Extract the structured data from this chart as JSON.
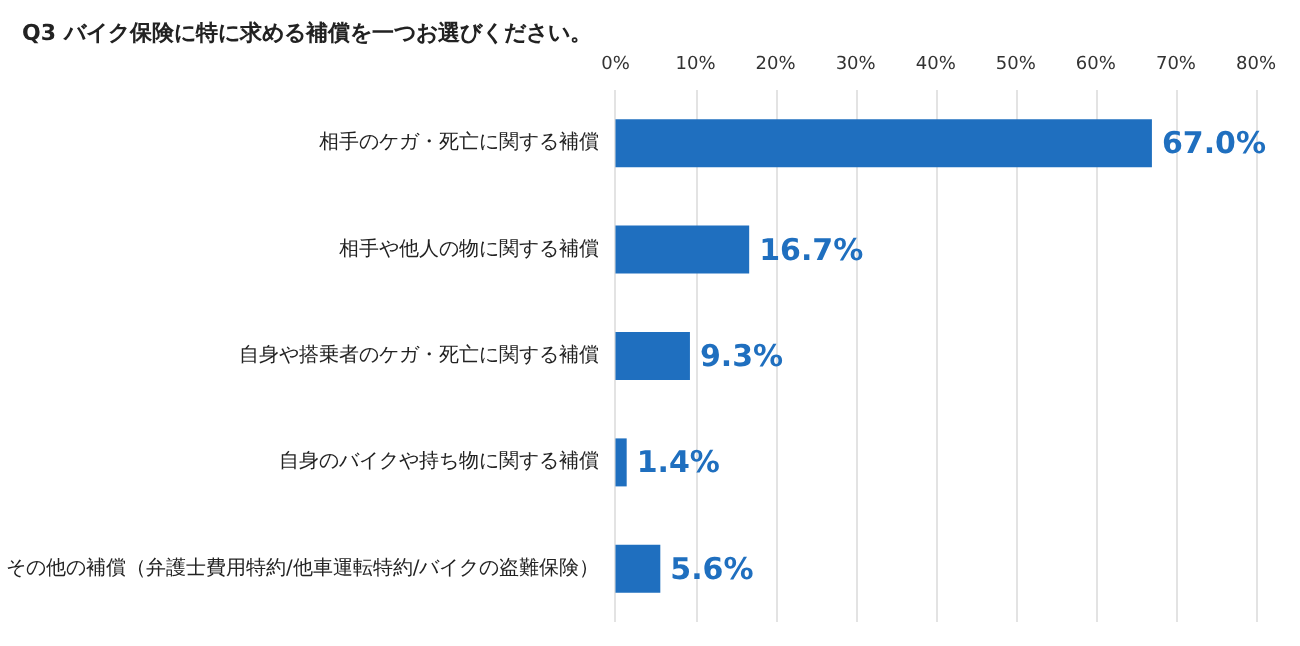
{
  "chart_data": {
    "type": "bar",
    "orientation": "horizontal",
    "title": "Q3 バイク保険に特に求める補償を一つお選びください。",
    "categories": [
      "相手のケガ・死亡に関する補償",
      "相手や他人の物に関する補償",
      "自身や搭乗者のケガ・死亡に関する補償",
      "自身のバイクや持ち物に関する補償",
      "その他の補償（弁護士費用特約/他車運転特約/バイクの盗難保険）"
    ],
    "values": [
      67.0,
      16.7,
      9.3,
      1.4,
      5.6
    ],
    "value_labels": [
      "67.0%",
      "16.7%",
      "9.3%",
      "1.4%",
      "5.6%"
    ],
    "color": "#1f6fbf",
    "xlim": [
      0,
      80
    ],
    "xticks": [
      {
        "value": 0,
        "label": "0%"
      },
      {
        "value": 10,
        "label": "10%"
      },
      {
        "value": 20,
        "label": "20%"
      },
      {
        "value": 30,
        "label": "30%"
      },
      {
        "value": 40,
        "label": "40%"
      },
      {
        "value": 50,
        "label": "50%"
      },
      {
        "value": 60,
        "label": "60%"
      },
      {
        "value": 70,
        "label": "70%"
      },
      {
        "value": 80,
        "label": "80%"
      }
    ],
    "grid": true
  }
}
